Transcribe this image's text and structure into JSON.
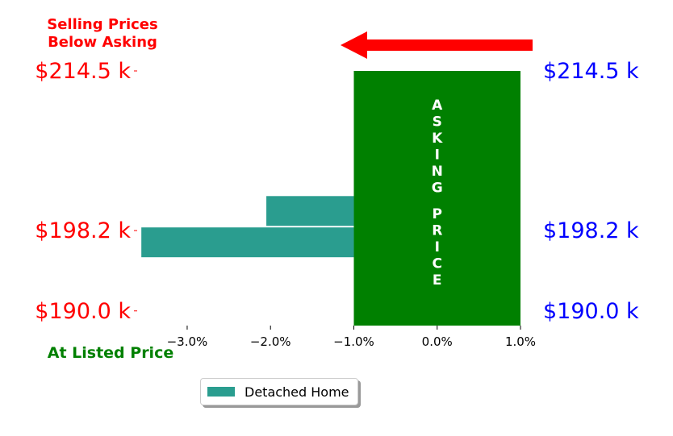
{
  "chart_data": {
    "type": "bar",
    "orientation": "horizontal",
    "series": [
      {
        "name": "Detached Home",
        "color": "#2a9d8f",
        "bars": [
          {
            "price_k": 200.2,
            "value": -2.05
          },
          {
            "price_k": 197.0,
            "value": -3.55
          }
        ]
      }
    ],
    "asking_band": {
      "x": [
        -1.0,
        1.0
      ],
      "y": [
        188.5,
        214.5
      ],
      "color": "#008000",
      "label": "ASKING PRICE"
    },
    "xlim": [
      -3.6,
      1.0
    ],
    "ylim": [
      188.5,
      214.5
    ],
    "x_ticks": [
      -3.0,
      -2.0,
      -1.0,
      0.0,
      1.0
    ],
    "x_tick_labels": [
      "−3.0%",
      "−2.0%",
      "−1.0%",
      "0.0%",
      "1.0%"
    ],
    "y_ticks": [
      214.5,
      198.2,
      190.0
    ],
    "y_tick_labels_left": [
      "$214.5 k",
      "$198.2 k",
      "$190.0 k"
    ],
    "y_tick_labels_right": [
      "$214.5 k",
      "$198.2 k",
      "$190.0 k"
    ],
    "left_label_color": "#ff0000",
    "right_label_color": "#0000ff",
    "annotations": {
      "below_asking": "Selling Prices\nBelow Asking",
      "below_asking_color": "#ff0000",
      "listed": "At Listed Price",
      "listed_color": "#008000",
      "arrow_color": "#ff0000",
      "arrow_direction": "left"
    },
    "legend": {
      "placement": "bottom-center",
      "entries": [
        "Detached Home"
      ]
    }
  }
}
